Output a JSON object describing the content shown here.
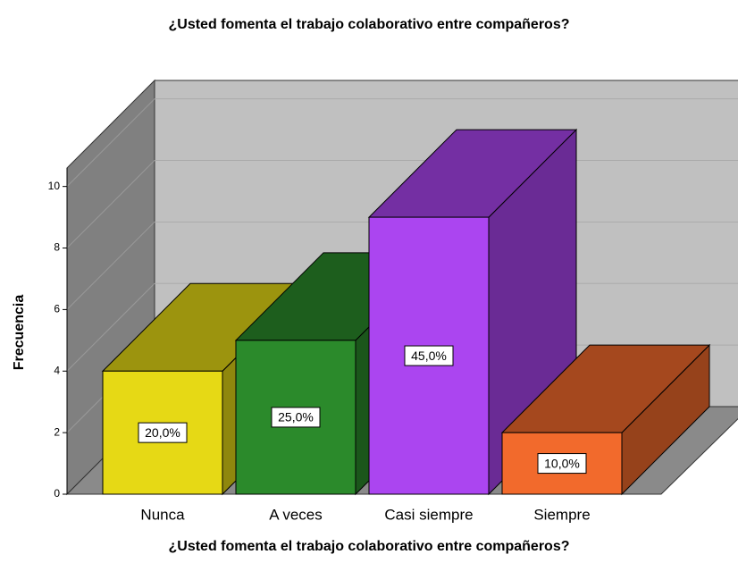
{
  "chart_data": {
    "type": "bar",
    "title": "¿Usted fomenta el trabajo colaborativo entre compañeros?",
    "x_label": "¿Usted fomenta el trabajo colaborativo entre compañeros?",
    "y_label": "Frecuencia",
    "categories": [
      "Nunca",
      "A veces",
      "Casi siempre",
      "Siempre"
    ],
    "values": [
      4,
      5,
      9,
      2
    ],
    "value_labels": [
      "20,0%",
      "25,0%",
      "45,0%",
      "10,0%"
    ],
    "colors": [
      "#e6d915",
      "#2b8a2b",
      "#ab45f0",
      "#f26a2c"
    ],
    "ylim": [
      0,
      10.6
    ],
    "yticks": [
      0,
      2,
      4,
      6,
      8,
      10
    ],
    "grid": true
  }
}
